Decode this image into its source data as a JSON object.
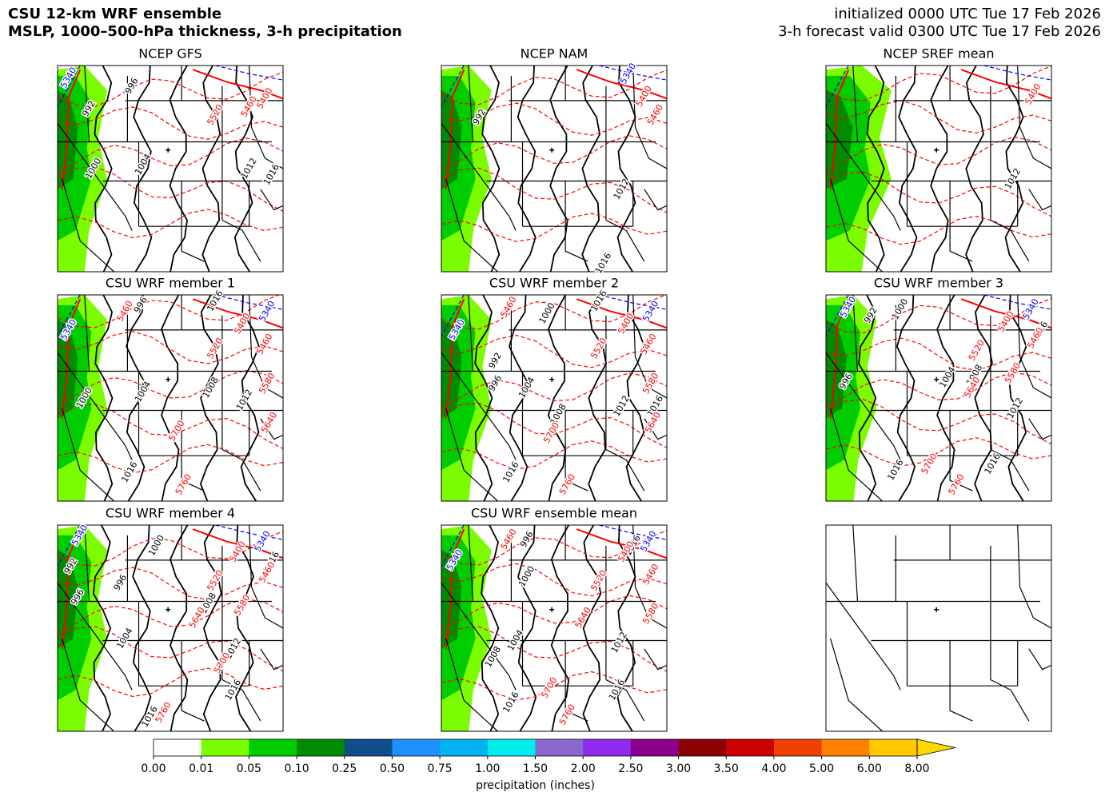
{
  "chart_data": {
    "type": "ensemble-map",
    "title_lines": [
      "CSU 12-km WRF ensemble",
      "MSLP, 1000–500-hPa thickness, 3-h precipitation"
    ],
    "time_lines": [
      "initialized 0000 UTC Tue 17 Feb 2026",
      "3-h forecast valid 0300 UTC Tue 17 Feb 2026"
    ],
    "isobar_color": "#000000",
    "thickness_color": "#ff0000",
    "cold_thickness_color": "#0000ff",
    "panels": [
      {
        "title": "NCEP GFS",
        "isobar_labels": [
          "996",
          "992",
          "1000",
          "1004",
          "1012",
          "1016"
        ],
        "thickness_labels": [
          "5400",
          "5460",
          "5520"
        ],
        "cold_thickness_labels": [
          "5340"
        ]
      },
      {
        "title": "NCEP NAM",
        "isobar_labels": [
          "992",
          "1012",
          "1016"
        ],
        "thickness_labels": [
          "5400",
          "5460"
        ],
        "cold_thickness_labels": [
          "5340"
        ]
      },
      {
        "title": "NCEP SREF mean",
        "isobar_labels": [
          "1012"
        ],
        "thickness_labels": [
          "5400"
        ],
        "cold_thickness_labels": []
      },
      {
        "title": "CSU WRF member 1",
        "isobar_labels": [
          "996",
          "1000",
          "1004",
          "1008",
          "1012",
          "1016",
          "1016"
        ],
        "thickness_labels": [
          "5460",
          "5400",
          "5460",
          "5520",
          "5580",
          "5640",
          "5700",
          "5760"
        ],
        "cold_thickness_labels": [
          "5340",
          "5340"
        ]
      },
      {
        "title": "CSU WRF member 2",
        "isobar_labels": [
          "1000",
          "1016",
          "992",
          "996",
          "1004",
          "1008",
          "1012",
          "1016",
          "1016"
        ],
        "thickness_labels": [
          "5460",
          "5400",
          "5460",
          "5520",
          "5580",
          "5640",
          "5700",
          "5760"
        ],
        "cold_thickness_labels": [
          "5340",
          "5340"
        ]
      },
      {
        "title": "CSU WRF member 3",
        "isobar_labels": [
          "992",
          "1000",
          "1016",
          "996",
          "1004",
          "1008",
          "1012",
          "1016",
          "1016"
        ],
        "thickness_labels": [
          "5400",
          "5460",
          "5520",
          "5580",
          "5640",
          "5700",
          "5760"
        ],
        "cold_thickness_labels": [
          "5340",
          "5340"
        ]
      },
      {
        "title": "CSU WRF member 4",
        "isobar_labels": [
          "1000",
          "992",
          "996",
          "996",
          "1004",
          "1008",
          "1012",
          "1016",
          "1016",
          "1016"
        ],
        "thickness_labels": [
          "5400",
          "5460",
          "5520",
          "5580",
          "5640",
          "5700",
          "5760"
        ],
        "cold_thickness_labels": [
          "5340",
          "5340"
        ]
      },
      {
        "title": "CSU WRF ensemble mean",
        "isobar_labels": [
          "996",
          "1000",
          "1016",
          "1004",
          "1008",
          "1012",
          "1016",
          "1016"
        ],
        "thickness_labels": [
          "5460",
          "5400",
          "5460",
          "5520",
          "5580",
          "5640",
          "5700",
          "5760"
        ],
        "cold_thickness_labels": [
          "5340",
          "5340"
        ]
      }
    ],
    "colorbar": {
      "label": "precipitation (inches)",
      "ticks": [
        {
          "value": 0,
          "label": "0.00"
        },
        {
          "value": 0.01,
          "label": "0.01"
        },
        {
          "value": 0.05,
          "label": "0.05"
        },
        {
          "value": 0.1,
          "label": "0.10"
        },
        {
          "value": 0.25,
          "label": "0.25"
        },
        {
          "value": 0.5,
          "label": "0.50"
        },
        {
          "value": 0.75,
          "label": "0.75"
        },
        {
          "value": 1,
          "label": "1.00"
        },
        {
          "value": 1.5,
          "label": "1.50"
        },
        {
          "value": 2,
          "label": "2.00"
        },
        {
          "value": 2.5,
          "label": "2.50"
        },
        {
          "value": 3,
          "label": "3.00"
        },
        {
          "value": 3.5,
          "label": "3.50"
        },
        {
          "value": 4,
          "label": "4.00"
        },
        {
          "value": 5,
          "label": "5.00"
        },
        {
          "value": 6,
          "label": "6.00"
        },
        {
          "value": 8,
          "label": "8.00"
        }
      ],
      "colors": [
        "#ffffff",
        "#7cfc00",
        "#00cd00",
        "#008b00",
        "#104e8b",
        "#1e90ff",
        "#00b2ee",
        "#00eeee",
        "#8968cd",
        "#912cee",
        "#8b008b",
        "#8b0000",
        "#cd0000",
        "#ee4000",
        "#ff7f00",
        "#ffc800"
      ],
      "extend_color": "#ffd700"
    }
  }
}
